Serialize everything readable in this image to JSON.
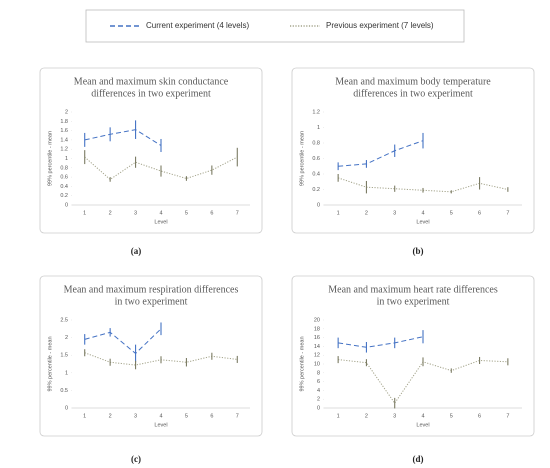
{
  "legend_note": null,
  "chart_data": [
    {
      "type": "line",
      "caption": "(a)",
      "title": [
        "Mean and maximum skin conductance",
        "differences in two experiment"
      ],
      "x_label": "Level",
      "y_label": "99% percentile - mean",
      "categories": [
        "1",
        "2",
        "3",
        "4",
        "5",
        "6",
        "7"
      ],
      "ylim": [
        0,
        2
      ],
      "yticks": [
        0,
        0.2,
        0.4,
        0.6,
        0.8,
        1,
        1.2,
        1.4,
        1.6,
        1.8,
        2
      ],
      "series": [
        {
          "name": "Current experiment (4 levels)",
          "color": "#4472c4",
          "dash": "dashed",
          "values": [
            1.4,
            1.52,
            1.62,
            1.28,
            null,
            null,
            null
          ],
          "errors": [
            0.15,
            0.15,
            0.2,
            0.14,
            null,
            null,
            null
          ]
        },
        {
          "name": "Previous experiment (7 levels)",
          "color": "#a3a38a",
          "dash": "dotted",
          "values": [
            1.03,
            0.55,
            0.92,
            0.73,
            0.57,
            0.75,
            1.03
          ],
          "errors": [
            0.15,
            0.05,
            0.12,
            0.12,
            0.05,
            0.1,
            0.2
          ]
        }
      ]
    },
    {
      "type": "line",
      "caption": "(b)",
      "title": [
        "Mean and maximum body temperature",
        "differences in two experiment"
      ],
      "x_label": "Level",
      "y_label": "99% percentile - mean",
      "categories": [
        "1",
        "2",
        "3",
        "4",
        "5",
        "6",
        "7"
      ],
      "ylim": [
        0,
        1.2
      ],
      "yticks": [
        0,
        0.2,
        0.4,
        0.6,
        0.8,
        1,
        1.2
      ],
      "series": [
        {
          "color": "#4472c4",
          "dash": "dashed",
          "values": [
            0.5,
            0.53,
            0.7,
            0.83,
            null,
            null,
            null
          ],
          "errors": [
            0.05,
            0.05,
            0.08,
            0.1,
            null,
            null,
            null
          ]
        },
        {
          "color": "#a3a38a",
          "dash": "dotted",
          "values": [
            0.35,
            0.23,
            0.21,
            0.19,
            0.17,
            0.28,
            0.2
          ],
          "errors": [
            0.05,
            0.08,
            0.04,
            0.03,
            0.02,
            0.08,
            0.03
          ]
        }
      ]
    },
    {
      "type": "line",
      "caption": "(c)",
      "title": [
        "Mean and maximum respiration differences",
        "in two experiment"
      ],
      "x_label": "Level",
      "y_label": "99% percentile - mean",
      "categories": [
        "1",
        "2",
        "3",
        "4",
        "5",
        "6",
        "7"
      ],
      "ylim": [
        0,
        2.5
      ],
      "yticks": [
        0,
        0.5,
        1,
        1.5,
        2,
        2.5
      ],
      "series": [
        {
          "color": "#4472c4",
          "dash": "dashed",
          "values": [
            1.95,
            2.15,
            1.55,
            2.25,
            null,
            null,
            null
          ],
          "errors": [
            0.15,
            0.12,
            0.25,
            0.18,
            null,
            null,
            null
          ]
        },
        {
          "color": "#a3a38a",
          "dash": "dotted",
          "values": [
            1.57,
            1.3,
            1.22,
            1.37,
            1.3,
            1.47,
            1.38
          ],
          "errors": [
            0.1,
            0.1,
            0.12,
            0.1,
            0.12,
            0.1,
            0.1
          ]
        }
      ]
    },
    {
      "type": "line",
      "caption": "(d)",
      "title": [
        "Mean and maximum heart rate differences",
        "in two experiment"
      ],
      "x_label": "Level",
      "y_label": "99% percentile - mean",
      "categories": [
        "1",
        "2",
        "3",
        "4",
        "5",
        "6",
        "7"
      ],
      "ylim": [
        0,
        20
      ],
      "yticks": [
        0,
        2,
        4,
        6,
        8,
        10,
        12,
        14,
        16,
        18,
        20
      ],
      "series": [
        {
          "color": "#4472c4",
          "dash": "dashed",
          "values": [
            14.8,
            13.8,
            14.8,
            16.2,
            null,
            null,
            null
          ],
          "errors": [
            1.2,
            1.2,
            1.2,
            1.5,
            null,
            null,
            null
          ]
        },
        {
          "color": "#a3a38a",
          "dash": "dotted",
          "values": [
            11,
            10.3,
            1.1,
            10.5,
            8.5,
            10.8,
            10.5
          ],
          "errors": [
            0.8,
            0.8,
            1.2,
            1,
            0.5,
            0.8,
            0.8
          ]
        }
      ]
    }
  ]
}
